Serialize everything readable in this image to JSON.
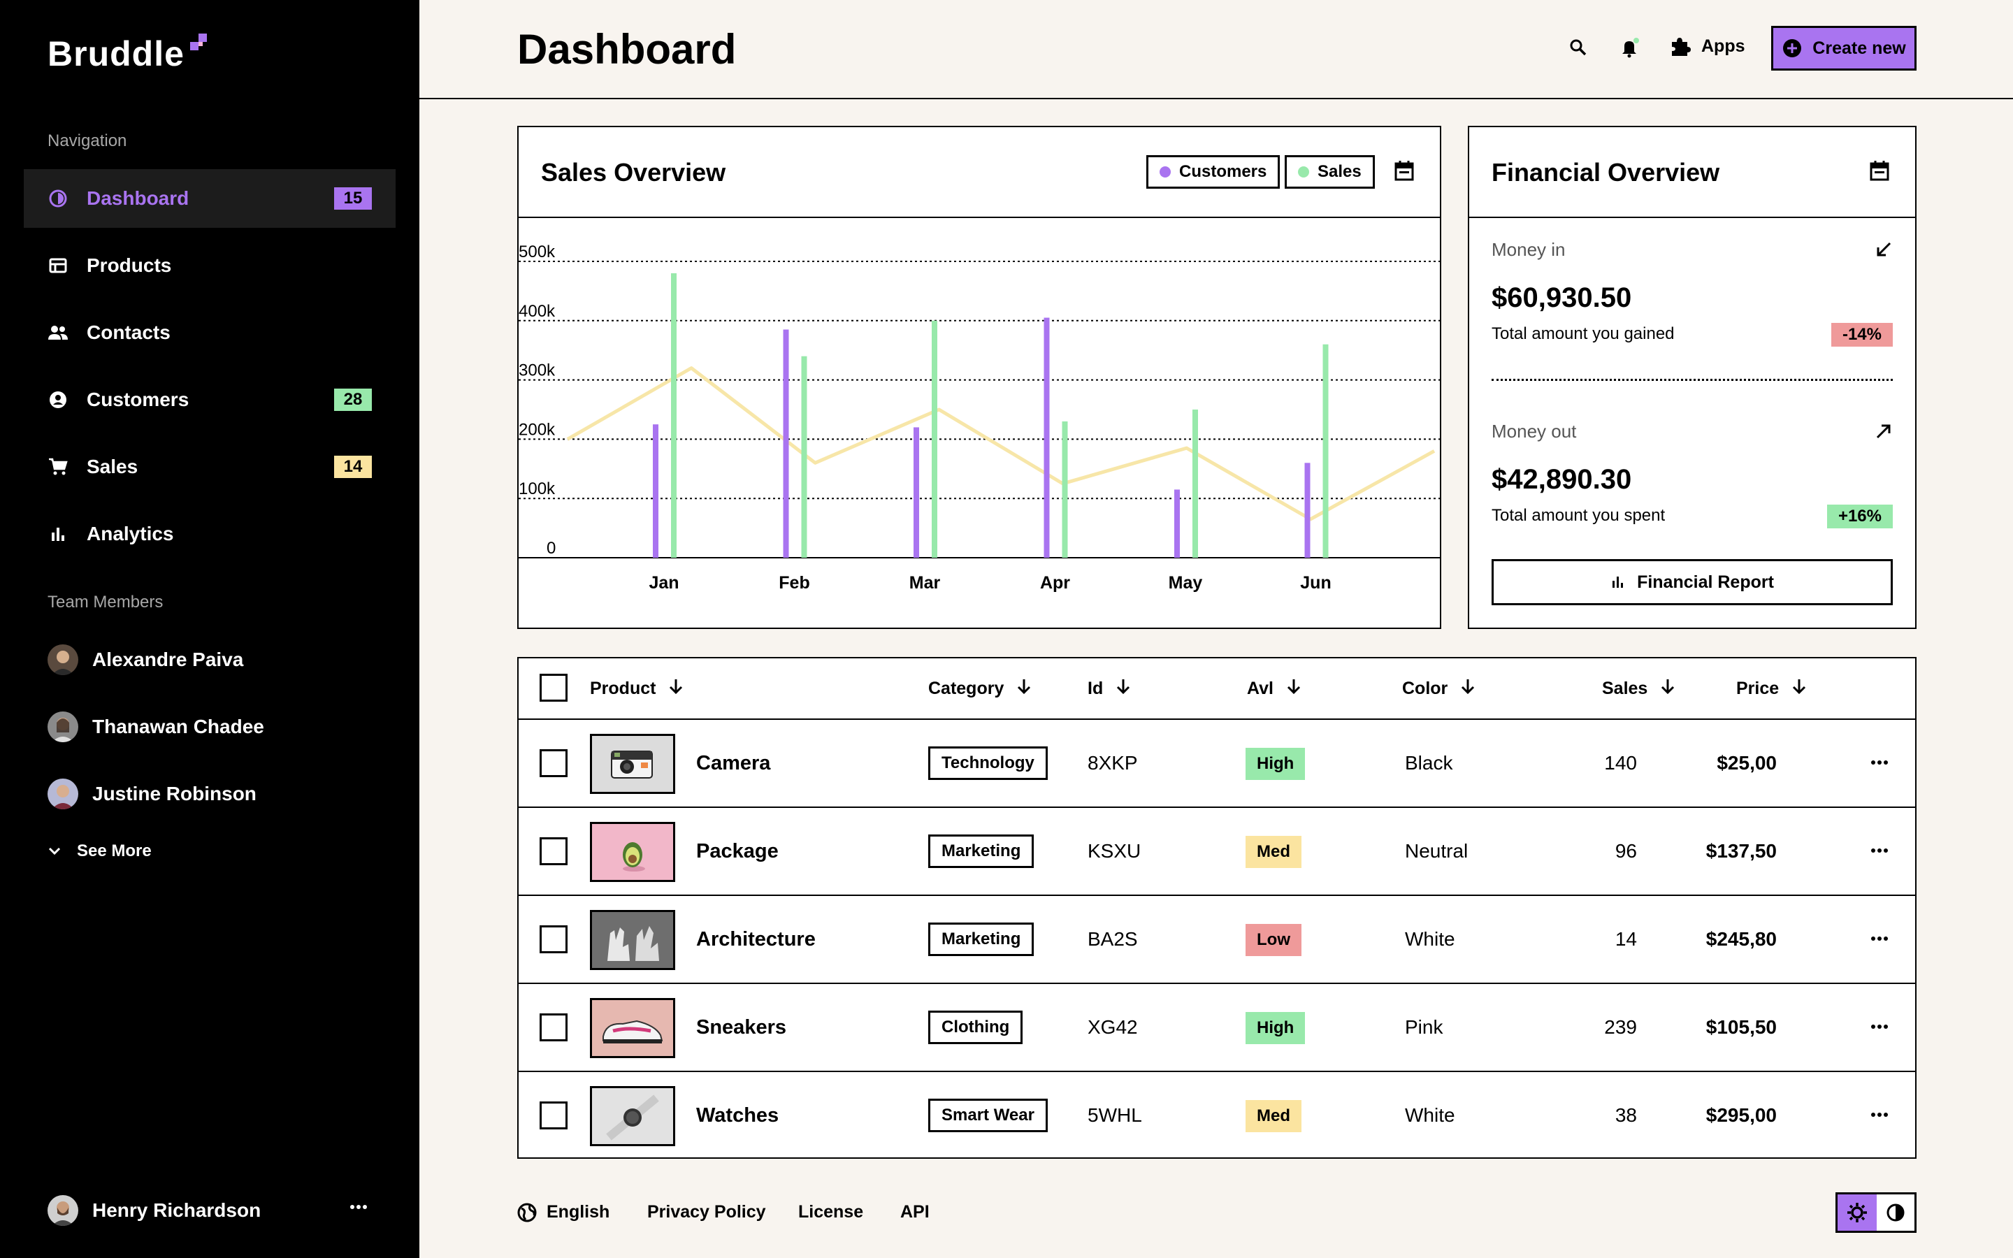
{
  "app": {
    "brand": "Bruddle"
  },
  "colors": {
    "accent": "#a974f0",
    "green": "#98e9ab",
    "yellow": "#fbe4a0",
    "red": "#ef9a9a",
    "line": "#f7e6a8"
  },
  "sidebar": {
    "nav_heading": "Navigation",
    "items": [
      {
        "label": "Dashboard",
        "icon": "dashboard-icon",
        "badge": "15",
        "badge_color": "#a974f0",
        "active": true
      },
      {
        "label": "Products",
        "icon": "store-icon",
        "badge": "",
        "active": false
      },
      {
        "label": "Contacts",
        "icon": "people-icon",
        "badge": "",
        "active": false
      },
      {
        "label": "Customers",
        "icon": "account-circle-icon",
        "badge": "28",
        "badge_color": "#98e9ab",
        "active": false
      },
      {
        "label": "Sales",
        "icon": "cart-icon",
        "badge": "14",
        "badge_color": "#fbe4a0",
        "active": false
      },
      {
        "label": "Analytics",
        "icon": "bar-chart-icon",
        "badge": "",
        "active": false
      }
    ],
    "team_heading": "Team Members",
    "members": [
      {
        "name": "Alexandre Paiva"
      },
      {
        "name": "Thanawan Chadee"
      },
      {
        "name": "Justine Robinson"
      }
    ],
    "see_more": "See More",
    "profile": {
      "name": "Henry Richardson"
    }
  },
  "header": {
    "title": "Dashboard",
    "apps_label": "Apps",
    "create_label": "Create new"
  },
  "sales_overview": {
    "title": "Sales Overview",
    "legend": [
      {
        "label": "Customers",
        "color": "#a974f0"
      },
      {
        "label": "Sales",
        "color": "#98e9ab"
      }
    ]
  },
  "chart_data": {
    "type": "bar",
    "categories": [
      "Jan",
      "Feb",
      "Mar",
      "Apr",
      "May",
      "Jun"
    ],
    "y_ticks": [
      "500k",
      "400k",
      "300k",
      "200k",
      "100k",
      "0"
    ],
    "ylim": [
      0,
      500000
    ],
    "grid": true,
    "series": [
      {
        "name": "Customers",
        "type": "bar",
        "values": [
          225000,
          385000,
          220000,
          405000,
          115000,
          160000
        ]
      },
      {
        "name": "Sales",
        "type": "bar",
        "values": [
          480000,
          340000,
          400000,
          230000,
          250000,
          360000
        ]
      }
    ],
    "trend_line": [
      200000,
      320000,
      160000,
      250000,
      125000,
      185000,
      65000,
      180000
    ]
  },
  "financial": {
    "title": "Financial Overview",
    "money_in": {
      "label": "Money in",
      "value": "$60,930.50",
      "sub": "Total amount you gained",
      "change": "-14%",
      "change_color": "#ef9a9a"
    },
    "money_out": {
      "label": "Money out",
      "value": "$42,890.30",
      "sub": "Total amount you spent",
      "change": "+16%",
      "change_color": "#98e9ab"
    },
    "report_label": "Financial Report"
  },
  "table": {
    "columns": {
      "product": "Product",
      "category": "Category",
      "id": "Id",
      "avl": "Avl",
      "color": "Color",
      "sales": "Sales",
      "price": "Price"
    },
    "rows": [
      {
        "product": "Camera",
        "thumb": "camera",
        "category": "Technology",
        "id": "8XKP",
        "avl": "High",
        "avl_color": "#98e9ab",
        "color": "Black",
        "sales": "140",
        "price": "$25,00"
      },
      {
        "product": "Package",
        "thumb": "package",
        "category": "Marketing",
        "id": "KSXU",
        "avl": "Med",
        "avl_color": "#fbe4a0",
        "color": "Neutral",
        "sales": "96",
        "price": "$137,50"
      },
      {
        "product": "Architecture",
        "thumb": "architecture",
        "category": "Marketing",
        "id": "BA2S",
        "avl": "Low",
        "avl_color": "#ef9a9a",
        "color": "White",
        "sales": "14",
        "price": "$245,80"
      },
      {
        "product": "Sneakers",
        "thumb": "sneakers",
        "category": "Clothing",
        "id": "XG42",
        "avl": "High",
        "avl_color": "#98e9ab",
        "color": "Pink",
        "sales": "239",
        "price": "$105,50"
      },
      {
        "product": "Watches",
        "thumb": "watches",
        "category": "Smart Wear",
        "id": "5WHL",
        "avl": "Med",
        "avl_color": "#fbe4a0",
        "color": "White",
        "sales": "38",
        "price": "$295,00"
      }
    ]
  },
  "footer": {
    "language": "English",
    "privacy": "Privacy Policy",
    "license": "License",
    "api": "API"
  }
}
